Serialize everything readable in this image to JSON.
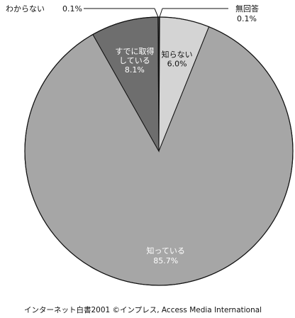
{
  "chart_data": {
    "type": "pie",
    "slices": [
      {
        "label": "無回答",
        "value": 0.1,
        "display": "0.1%",
        "color": "#ffffff"
      },
      {
        "label": "知らない",
        "value": 6.0,
        "display": "6.0%",
        "color": "#d4d4d4"
      },
      {
        "label": "知っている",
        "value": 85.7,
        "display": "85.7%",
        "color": "#a6a6a6"
      },
      {
        "label": "すでに取得している",
        "label_lines": [
          "すでに取得",
          "している"
        ],
        "display": "8.1%",
        "value": 8.1,
        "color": "#6e6e6e"
      },
      {
        "label": "わからない",
        "value": 0.1,
        "display": "0.1%",
        "color": "#ffffff"
      }
    ],
    "start": "top",
    "direction": "clockwise"
  },
  "callouts": {
    "left": {
      "label": "わからない",
      "value": "0.1%"
    },
    "right": {
      "label": "無回答",
      "value": "0.1%"
    }
  },
  "source": "インターネット白書2001 ©インプレス, Access Media International"
}
